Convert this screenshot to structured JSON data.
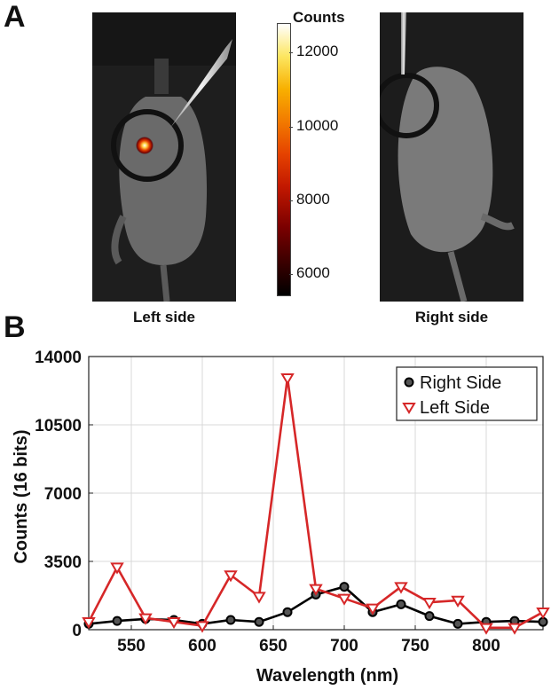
{
  "panel_a": {
    "letter": "A",
    "left_caption": "Left side",
    "right_caption": "Right side",
    "colorbar": {
      "title": "Counts",
      "ticks": [
        "12000",
        "10000",
        "8000",
        "6000"
      ],
      "tick_values": [
        12000,
        10000,
        8000,
        6000
      ],
      "range": [
        5400,
        12800
      ],
      "colors": [
        "#000000",
        "#7a0000",
        "#e54200",
        "#f8b000",
        "#ffffff"
      ]
    }
  },
  "panel_b": {
    "letter": "B"
  },
  "chart_data": {
    "type": "line",
    "xlabel": "Wavelength (nm)",
    "ylabel": "Counts (16 bits)",
    "xlim": [
      520,
      840
    ],
    "ylim": [
      0,
      14000
    ],
    "xticks": [
      550,
      600,
      650,
      700,
      750,
      800
    ],
    "yticks": [
      0,
      3500,
      7000,
      10500,
      14000
    ],
    "grid": true,
    "legend_position": "top-right",
    "series": [
      {
        "name": "Right Side",
        "color": "#000000",
        "marker": "circle",
        "x": [
          520,
          540,
          560,
          580,
          600,
          620,
          640,
          660,
          680,
          700,
          720,
          740,
          760,
          780,
          800,
          820,
          840
        ],
        "y": [
          300,
          450,
          550,
          500,
          300,
          500,
          400,
          900,
          1800,
          2200,
          900,
          1300,
          700,
          300,
          400,
          450,
          400
        ]
      },
      {
        "name": "Left Side",
        "color": "#d62728",
        "marker": "triangle-down",
        "x": [
          520,
          540,
          560,
          580,
          600,
          620,
          640,
          660,
          680,
          700,
          720,
          740,
          760,
          780,
          800,
          820,
          840
        ],
        "y": [
          400,
          3200,
          600,
          400,
          200,
          2800,
          1700,
          12900,
          2100,
          1600,
          1100,
          2200,
          1400,
          1500,
          100,
          100,
          900
        ]
      }
    ]
  }
}
